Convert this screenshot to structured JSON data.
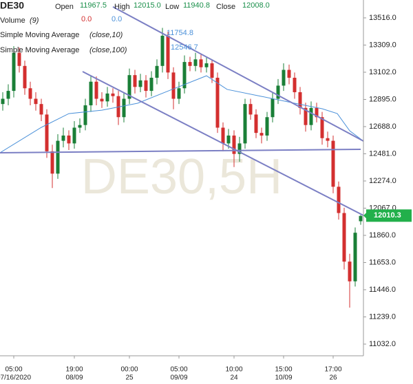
{
  "chart_data": {
    "type": "candlestick",
    "header": {
      "symbol": "DE30",
      "open_label": "Open",
      "open": "11967.5",
      "high_label": "High",
      "high": "12015.0",
      "low_label": "Low",
      "low": "11940.8",
      "close_label": "Close",
      "close": "12008.0"
    },
    "indicators": [
      {
        "name": "Volume",
        "params": "(9)",
        "values": [
          "0.0",
          "0.0"
        ]
      },
      {
        "name": "Simple Moving Average",
        "params": "(close,10)",
        "values": [
          "11754.8"
        ]
      },
      {
        "name": "Simple Moving Average",
        "params": "(close,100)",
        "values": [
          "12546.7"
        ]
      }
    ],
    "watermark": "DE30,5H",
    "last_price": {
      "value": 12010.3,
      "label": "12010.3"
    },
    "up_color": "#1a7f37",
    "down_color": "#d32f2f",
    "candles": {
      "open": [
        12860,
        12900,
        12960,
        13250,
        13150,
        12980,
        12900,
        12860,
        12780,
        12500,
        12330,
        12580,
        12620,
        12560,
        12680,
        12700,
        12850,
        13030,
        12900,
        12880,
        12940,
        12920,
        12760,
        12900,
        13080,
        12990,
        13040,
        12960,
        13060,
        13150,
        13380,
        13100,
        12900,
        12980,
        13180,
        13150,
        13200,
        13140,
        13170,
        13060,
        12680,
        12560,
        12620,
        12480,
        12560,
        12860,
        12780,
        12640,
        12620,
        12760,
        12900,
        13000,
        13120,
        13060,
        12950,
        12830,
        12700,
        12830,
        12760,
        12600,
        12580,
        12230,
        12030,
        11660,
        11510,
        11967.5
      ],
      "high": [
        12950,
        13010,
        13300,
        13290,
        13190,
        13030,
        12950,
        12900,
        12820,
        12550,
        12630,
        12680,
        12660,
        12730,
        12750,
        12900,
        13080,
        13070,
        12950,
        12990,
        12980,
        12960,
        12950,
        13130,
        13120,
        13090,
        13080,
        13110,
        13200,
        13440,
        13410,
        13140,
        13030,
        13230,
        13220,
        13250,
        13240,
        13220,
        13200,
        13100,
        12720,
        12670,
        12660,
        12610,
        12900,
        12900,
        12820,
        12680,
        12800,
        12950,
        13050,
        13170,
        13160,
        13100,
        12990,
        12870,
        12880,
        12870,
        12800,
        12650,
        12620,
        12270,
        12070,
        11720,
        11920,
        12015
      ],
      "low": [
        12810,
        12850,
        12910,
        13100,
        12930,
        12850,
        12810,
        12730,
        12450,
        12220,
        12290,
        12530,
        12510,
        12520,
        12640,
        12660,
        12800,
        12850,
        12830,
        12840,
        12870,
        12700,
        12720,
        12860,
        12940,
        12950,
        12910,
        12920,
        13010,
        13100,
        13050,
        12820,
        12860,
        12940,
        13110,
        13110,
        13100,
        13100,
        13020,
        12640,
        12500,
        12520,
        12380,
        12420,
        12520,
        12740,
        12600,
        12560,
        12580,
        12720,
        12860,
        12960,
        13010,
        12900,
        12780,
        12650,
        12660,
        12720,
        12550,
        12530,
        12180,
        11980,
        11600,
        11310,
        11470,
        11940.8
      ],
      "close": [
        12900,
        12960,
        13250,
        13150,
        12980,
        12900,
        12860,
        12780,
        12500,
        12330,
        12580,
        12620,
        12560,
        12680,
        12700,
        12850,
        13030,
        12900,
        12880,
        12940,
        12920,
        12760,
        12900,
        13080,
        12990,
        13040,
        12960,
        13060,
        13150,
        13380,
        13100,
        12900,
        12980,
        13180,
        13150,
        13200,
        13140,
        13170,
        13060,
        12680,
        12560,
        12620,
        12480,
        12560,
        12860,
        12780,
        12640,
        12620,
        12760,
        12900,
        13000,
        13120,
        13060,
        12950,
        12830,
        12700,
        12830,
        12760,
        12600,
        12580,
        12230,
        12030,
        11660,
        11510,
        11880,
        12008
      ]
    },
    "sma100": {
      "color": "#4a90d9",
      "x": [
        -0.5,
        7,
        12,
        18,
        24.5,
        30.75,
        37,
        40.75,
        47,
        53,
        58,
        60.75,
        63,
        65.5
      ],
      "values": [
        12489,
        12682,
        12787,
        12813,
        12866,
        12971,
        13075,
        12971,
        12918,
        12866,
        12824,
        12787,
        12656,
        12578
      ]
    },
    "trendlines": {
      "color": "#7b7fc4",
      "lines": [
        {
          "x": [
            20,
            65.5
          ],
          "values": [
            13600,
            12578
          ]
        },
        {
          "x": [
            14.5,
            65.5
          ],
          "values": [
            13107,
            12012
          ]
        },
        {
          "x": [
            -0.5,
            65
          ],
          "values": [
            12489,
            12515
          ]
        }
      ]
    },
    "xticks": [
      {
        "value": 2,
        "label": "05:00",
        "date": "07/16/2020"
      },
      {
        "value": 13,
        "label": "19:00",
        "date": "08/09"
      },
      {
        "value": 23,
        "label": "00:00",
        "date": "25"
      },
      {
        "value": 32,
        "label": "05:00",
        "date": "09/09"
      },
      {
        "value": 42,
        "label": "10:00",
        "date": "24"
      },
      {
        "value": 51,
        "label": "15:00",
        "date": "10/09"
      },
      {
        "value": 60,
        "label": "17:00",
        "date": "26"
      }
    ],
    "ylim": [
      10943,
      13652
    ],
    "yticks": [
      {
        "value": 11032,
        "label": "11032.0"
      },
      {
        "value": 11239,
        "label": "11239.0"
      },
      {
        "value": 11446,
        "label": "11446.0"
      },
      {
        "value": 11653,
        "label": "11653.0"
      },
      {
        "value": 11860,
        "label": "11860.0"
      },
      {
        "value": 12067,
        "label": "12067.0"
      },
      {
        "value": 12274,
        "label": "12274.0"
      },
      {
        "value": 12481,
        "label": "12481.0"
      },
      {
        "value": 12688,
        "label": "12688.0"
      },
      {
        "value": 12895,
        "label": "12895.0"
      },
      {
        "value": 13102,
        "label": "13102.0"
      },
      {
        "value": 13309,
        "label": "13309.0"
      },
      {
        "value": 13516,
        "label": "13516.0"
      }
    ]
  }
}
